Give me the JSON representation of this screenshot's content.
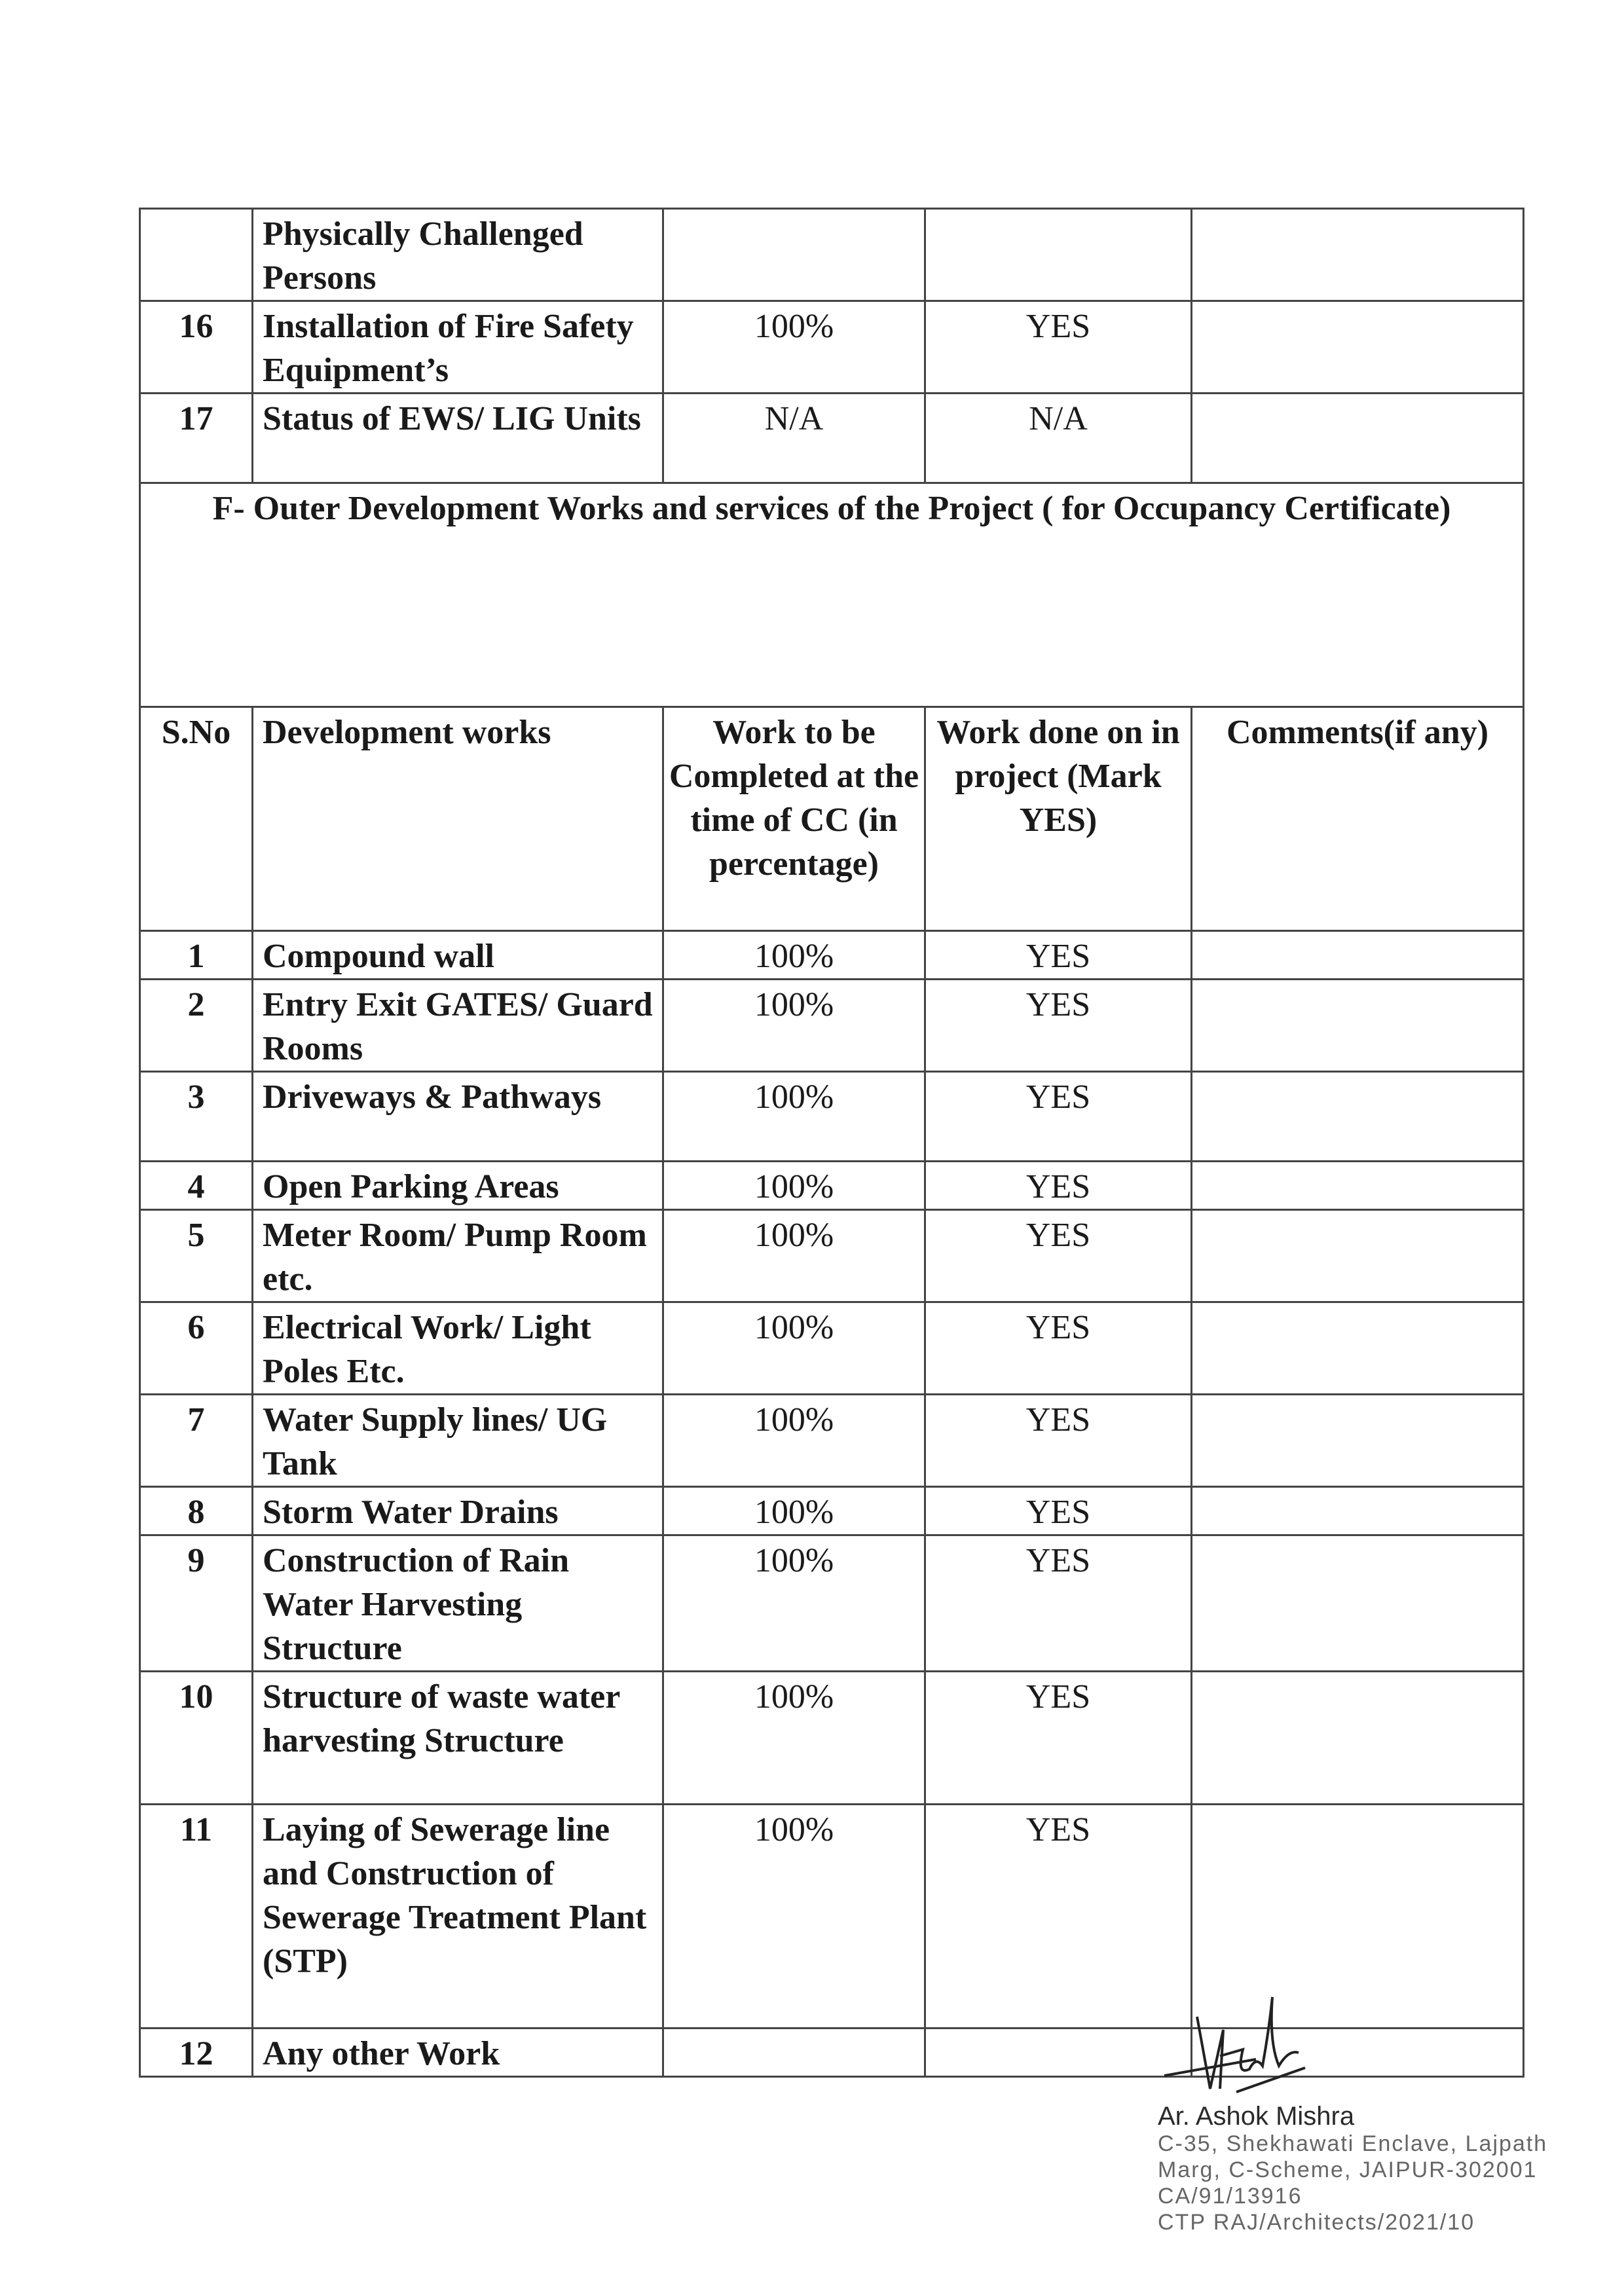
{
  "top_rows": [
    {
      "sno": "",
      "work": "Physically Challenged Persons",
      "target": "",
      "done": "",
      "comments": ""
    },
    {
      "sno": "16",
      "work": "Installation of Fire Safety Equipment’s",
      "target": "100%",
      "done": "YES",
      "comments": ""
    },
    {
      "sno": "17",
      "work": "Status of EWS/ LIG Units",
      "target": "N/A",
      "done": "N/A",
      "comments": ""
    }
  ],
  "section_title": "F- Outer Development Works and services of the Project ( for Occupancy Certificate)",
  "headers": {
    "sno": "S.No",
    "work": "Development works",
    "target": "Work to be Completed at the time of CC (in percentage)",
    "done": "Work done on in project (Mark YES)",
    "comments": "Comments(if any)"
  },
  "rows": [
    {
      "sno": "1",
      "work": "Compound wall",
      "target": "100%",
      "done": "YES",
      "comments": ""
    },
    {
      "sno": "2",
      "work": "Entry Exit GATES/ Guard Rooms",
      "target": "100%",
      "done": "YES",
      "comments": ""
    },
    {
      "sno": "3",
      "work": "Driveways & Pathways",
      "target": "100%",
      "done": "YES",
      "comments": ""
    },
    {
      "sno": "4",
      "work": "Open Parking Areas",
      "target": "100%",
      "done": "YES",
      "comments": ""
    },
    {
      "sno": "5",
      "work": "Meter Room/ Pump Room etc.",
      "target": "100%",
      "done": "YES",
      "comments": ""
    },
    {
      "sno": "6",
      "work": "Electrical Work/ Light Poles Etc.",
      "target": "100%",
      "done": "YES",
      "comments": ""
    },
    {
      "sno": "7",
      "work": "Water Supply lines/ UG Tank",
      "target": "100%",
      "done": "YES",
      "comments": ""
    },
    {
      "sno": "8",
      "work": "Storm Water Drains",
      "target": "100%",
      "done": "YES",
      "comments": ""
    },
    {
      "sno": "9",
      "work": "Construction of Rain Water Harvesting Structure",
      "target": "100%",
      "done": "YES",
      "comments": ""
    },
    {
      "sno": "10",
      "work": "Structure of waste water harvesting Structure",
      "target": "100%",
      "done": "YES",
      "comments": ""
    },
    {
      "sno": "11",
      "work": "Laying of Sewerage line and Construction of Sewerage Treatment Plant (STP)",
      "target": "100%",
      "done": "YES",
      "comments": ""
    },
    {
      "sno": "12",
      "work": "Any other Work",
      "target": "",
      "done": "",
      "comments": ""
    }
  ],
  "stamp": {
    "signature": "Ashok",
    "name": "Ar. Ashok Mishra",
    "address_1": "C-35, Shekhawati Enclave, Lajpath",
    "address_2": "Marg, C-Scheme, JAIPUR-302001",
    "reg_no": "CA/91/13916",
    "ctp_no": "CTP RAJ/Architects/2021/10"
  }
}
